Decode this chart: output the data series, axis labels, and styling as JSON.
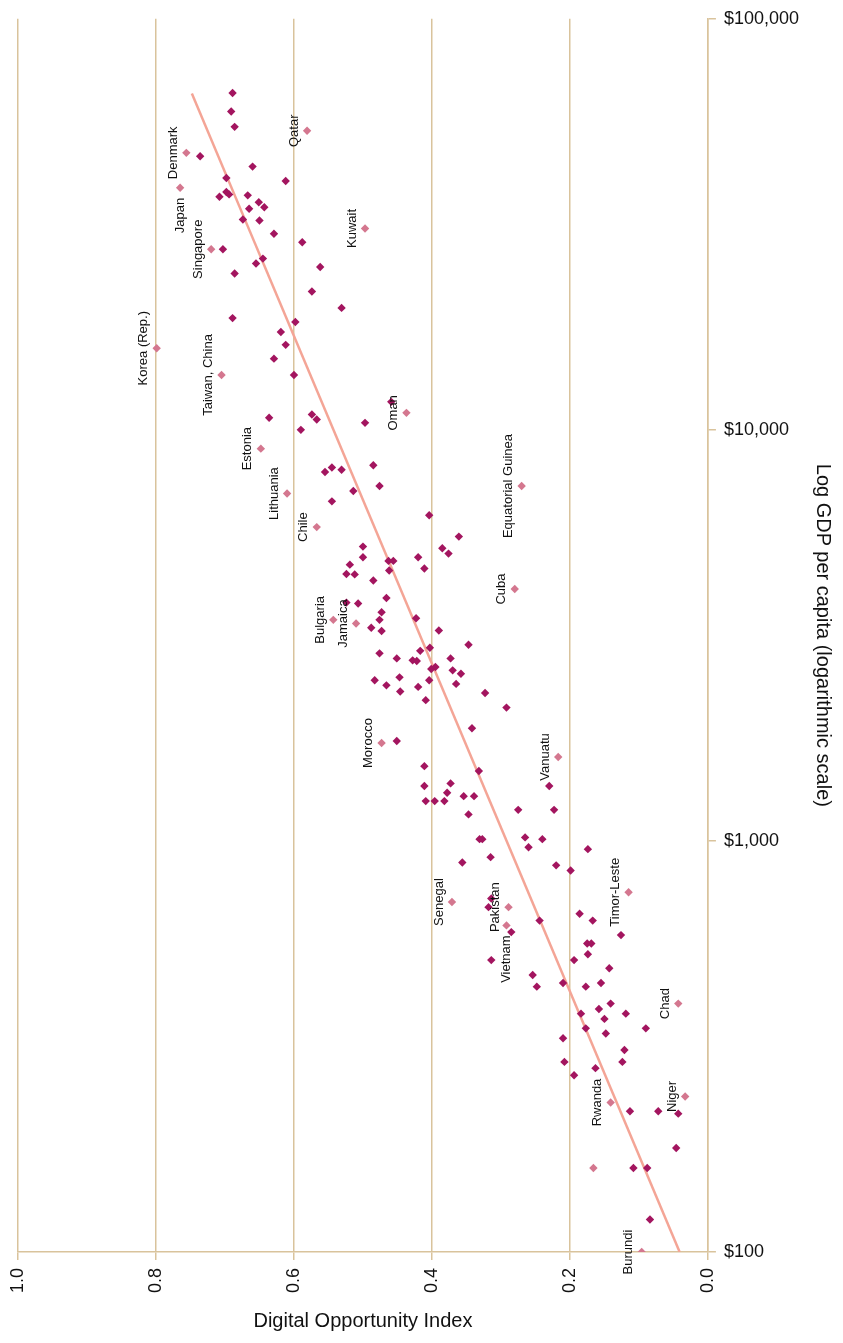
{
  "chart_data": {
    "type": "scatter",
    "xlabel": "Digital Opportunity Index",
    "ylabel": "Log GDP per capita (logarithmic scale)",
    "log": "y",
    "grid": "x",
    "marker": "diamond",
    "xlim": [
      1,
      0
    ],
    "xticks": [
      {
        "value": 1,
        "label": "1.0"
      },
      {
        "value": 0.8,
        "label": "0.8"
      },
      {
        "value": 0.6,
        "label": "0.6"
      },
      {
        "value": 0.4,
        "label": "0.4"
      },
      {
        "value": 0.2,
        "label": "0.2"
      },
      {
        "value": 0,
        "label": "0.0"
      }
    ],
    "ylim": [
      100,
      100000
    ],
    "yticks": [
      {
        "value": 100,
        "label": "$100"
      },
      {
        "value": 1000,
        "label": "$1,000"
      },
      {
        "value": 10000,
        "label": "$10,000"
      },
      {
        "value": 100000,
        "label": "$100,000"
      }
    ],
    "series": [
      {
        "color": "#a3155f",
        "x": [
          0.689,
          0.691,
          0.686,
          0.736,
          0.66,
          0.698,
          0.612,
          0.708,
          0.698,
          0.694,
          0.667,
          0.651,
          0.643,
          0.665,
          0.674,
          0.65,
          0.629,
          0.703,
          0.588,
          0.562,
          0.645,
          0.655,
          0.686,
          0.574,
          0.531,
          0.689,
          0.598,
          0.619,
          0.612,
          0.629,
          0.6,
          0.459,
          0.636,
          0.574,
          0.567,
          0.497,
          0.59,
          0.485,
          0.555,
          0.545,
          0.531,
          0.476,
          0.514,
          0.545,
          0.404,
          0.361,
          0.5,
          0.385,
          0.376,
          0.5,
          0.42,
          0.463,
          0.456,
          0.519,
          0.524,
          0.512,
          0.411,
          0.462,
          0.485,
          0.466,
          0.524,
          0.507,
          0.473,
          0.476,
          0.423,
          0.488,
          0.39,
          0.473,
          0.347,
          0.417,
          0.403,
          0.476,
          0.451,
          0.428,
          0.422,
          0.373,
          0.401,
          0.395,
          0.37,
          0.358,
          0.447,
          0.483,
          0.404,
          0.466,
          0.42,
          0.365,
          0.446,
          0.323,
          0.409,
          0.292,
          0.342,
          0.451,
          0.411,
          0.332,
          0.411,
          0.373,
          0.23,
          0.378,
          0.354,
          0.339,
          0.409,
          0.396,
          0.382,
          0.275,
          0.223,
          0.347,
          0.331,
          0.327,
          0.265,
          0.24,
          0.26,
          0.174,
          0.315,
          0.356,
          0.22,
          0.199,
          0.314,
          0.318,
          0.244,
          0.285,
          0.186,
          0.167,
          0.126,
          0.175,
          0.169,
          0.174,
          0.194,
          0.314,
          0.143,
          0.254,
          0.248,
          0.21,
          0.177,
          0.155,
          0.141,
          0.158,
          0.184,
          0.119,
          0.15,
          0.177,
          0.09,
          0.148,
          0.21,
          0.121,
          0.208,
          0.124,
          0.163,
          0.194,
          0.113,
          0.072,
          0.043,
          0.046,
          0.108,
          0.088,
          0.084
        ],
        "values": [
          66000,
          59500,
          54600,
          46300,
          43700,
          41000,
          40300,
          36900,
          37900,
          37400,
          37200,
          35800,
          34800,
          34500,
          32500,
          32300,
          30000,
          27500,
          28600,
          24900,
          26100,
          25400,
          24000,
          21700,
          19800,
          18700,
          18300,
          17300,
          16100,
          14900,
          13600,
          11700,
          10700,
          10900,
          10600,
          10400,
          10000,
          8200,
          7900,
          8100,
          8000,
          7300,
          7100,
          6700,
          6200,
          5500,
          5200,
          5150,
          5000,
          4900,
          4900,
          4800,
          4800,
          4700,
          4460,
          4450,
          4600,
          4550,
          4300,
          3900,
          3800,
          3780,
          3600,
          3450,
          3480,
          3300,
          3250,
          3240,
          3000,
          2900,
          2950,
          2860,
          2780,
          2750,
          2740,
          2780,
          2620,
          2650,
          2600,
          2550,
          2500,
          2460,
          2460,
          2390,
          2370,
          2410,
          2310,
          2290,
          2200,
          2110,
          1880,
          1750,
          1520,
          1480,
          1360,
          1380,
          1360,
          1310,
          1285,
          1285,
          1250,
          1250,
          1250,
          1190,
          1190,
          1160,
          1010,
          1010,
          1020,
          1010,
          965,
          955,
          913,
          886,
          872,
          847,
          724,
          690,
          640,
          600,
          665,
          640,
          590,
          563,
          563,
          530,
          513,
          513,
          490,
          472,
          442,
          451,
          442,
          451,
          402,
          390,
          380,
          380,
          369,
          350,
          350,
          340,
          331,
          310,
          290,
          290,
          280,
          269,
          220,
          220,
          217,
          179,
          160,
          160,
          120
        ]
      },
      {
        "color": "#d4778f",
        "x": [
          0.756,
          0.581,
          0.765,
          0.497,
          0.72,
          0.799,
          0.705,
          0.437,
          0.648,
          0.61,
          0.27,
          0.567,
          0.28,
          0.543,
          0.51,
          0.473,
          0.217,
          0.371,
          0.115,
          0.289,
          0.292,
          0.043,
          0.033,
          0.141,
          0.166,
          0.096
        ],
        "values": [
          47200,
          53400,
          38800,
          30900,
          27500,
          15800,
          13600,
          11000,
          9000,
          7000,
          7300,
          5800,
          4100,
          3450,
          3380,
          1730,
          1600,
          710,
          750,
          690,
          623,
          402,
          239,
          231,
          160,
          100
        ]
      },
      {
        "type": "line",
        "color": "#f4a596",
        "marker": "none",
        "line_style": "solid",
        "x": [
          0.041,
          0.748
        ],
        "values": [
          100,
          65800
        ]
      }
    ],
    "annotations": [
      {
        "text": "Denmark",
        "x": 0.756,
        "y": 47200
      },
      {
        "text": "Qatar",
        "x": 0.581,
        "y": 53400
      },
      {
        "text": "Japan",
        "x": 0.765,
        "y": 38800
      },
      {
        "text": "Kuwait",
        "x": 0.497,
        "y": 30900
      },
      {
        "text": "Singapore",
        "x": 0.72,
        "y": 27500
      },
      {
        "text": "Korea (Rep.)",
        "x": 0.799,
        "y": 15800
      },
      {
        "text": "Taiwan, China",
        "x": 0.705,
        "y": 13600
      },
      {
        "text": "Oman",
        "x": 0.437,
        "y": 11000
      },
      {
        "text": "Estonia",
        "x": 0.648,
        "y": 9000
      },
      {
        "text": "Lithuania",
        "x": 0.61,
        "y": 7000
      },
      {
        "text": "Equatorial Guinea",
        "x": 0.27,
        "y": 7300
      },
      {
        "text": "Chile",
        "x": 0.567,
        "y": 5800
      },
      {
        "text": "Cuba",
        "x": 0.28,
        "y": 4100
      },
      {
        "text": "Bulgaria",
        "x": 0.543,
        "y": 3450
      },
      {
        "text": "Jamaica",
        "x": 0.51,
        "y": 3380
      },
      {
        "text": "Morocco",
        "x": 0.473,
        "y": 1730
      },
      {
        "text": "Vanuatu",
        "x": 0.217,
        "y": 1600
      },
      {
        "text": "Senegal",
        "x": 0.371,
        "y": 710
      },
      {
        "text": "Timor-Leste",
        "x": 0.115,
        "y": 750
      },
      {
        "text": "Pakistan",
        "x": 0.289,
        "y": 690
      },
      {
        "text": "Vietnam",
        "x": 0.292,
        "y": 623
      },
      {
        "text": "Chad",
        "x": 0.043,
        "y": 402
      },
      {
        "text": "Niger",
        "x": 0.033,
        "y": 239
      },
      {
        "text": "Rwanda",
        "x": 0.141,
        "y": 231
      },
      {
        "text": "Burundi",
        "x": 0.096,
        "y": 100
      }
    ]
  }
}
